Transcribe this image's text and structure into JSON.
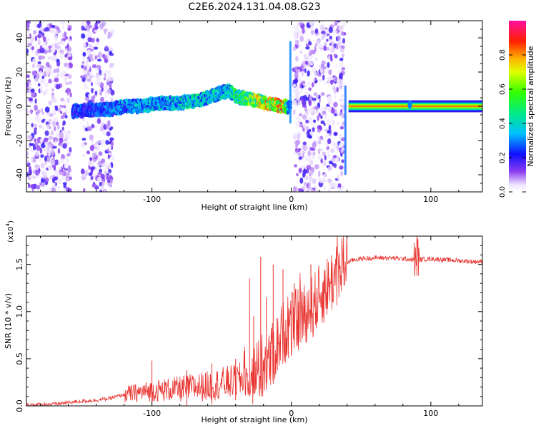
{
  "title": "C2E6.2024.131.04.08.G23",
  "chart_data": [
    {
      "type": "heatmap",
      "xlabel": "Height of straight line (km)",
      "ylabel": "Frequency (Hz)",
      "xlim": [
        -190,
        137
      ],
      "ylim": [
        -50,
        50
      ],
      "xticks": [
        "-100",
        "0",
        "100"
      ],
      "xtick_values": [
        -100,
        0,
        100
      ],
      "yticks": [
        "-40",
        "-20",
        "0",
        "20",
        "40"
      ],
      "ytick_values": [
        -40,
        -20,
        0,
        20,
        40
      ],
      "colorbar": {
        "label": "Normalized spectral amplitude",
        "range": [
          0,
          1
        ],
        "ticks": [
          "0.0",
          "0.2",
          "0.4",
          "0.6",
          "0.8"
        ],
        "tick_values": [
          0,
          0.2,
          0.4,
          0.6,
          0.8
        ],
        "colormap": "rainbow (white-purple-blue-cyan-green-yellow-red-magenta)"
      },
      "doppler_trace": {
        "x": [
          -157,
          -145,
          -130,
          -120,
          -110,
          -100,
          -90,
          -80,
          -70,
          -60,
          -50,
          -45,
          -40,
          -30,
          -20,
          -15,
          -10,
          -5,
          -1,
          0,
          40,
          45,
          50,
          60,
          80,
          100,
          120,
          137
        ],
        "y": [
          -3,
          -2,
          -2,
          0,
          0,
          1,
          2,
          2,
          3,
          5,
          8,
          9,
          6,
          4,
          2,
          1,
          0.5,
          0,
          0,
          0,
          0,
          0,
          0,
          0,
          0,
          0,
          0,
          0
        ],
        "amplitude": [
          0.3,
          0.3,
          0.35,
          0.4,
          0.4,
          0.45,
          0.4,
          0.45,
          0.5,
          0.45,
          0.45,
          0.45,
          0.55,
          0.7,
          0.8,
          0.85,
          0.9,
          0.9,
          0.3,
          0.3,
          0.3,
          0.8,
          0.95,
          0.95,
          0.95,
          0.95,
          0.95,
          0.95
        ]
      },
      "noise_bands": [
        [
          -190,
          -158
        ],
        [
          -150,
          -128
        ],
        [
          2,
          38
        ]
      ],
      "grid": false
    },
    {
      "type": "line",
      "xlabel": "Height of straight line (km)",
      "ylabel": "SNR (10 * v/v)",
      "multiplier": "(x10",
      "multiplier_exp": "4",
      "multiplier_close": ")",
      "xlim": [
        -190,
        137
      ],
      "ylim": [
        0,
        1.8
      ],
      "xticks": [
        "-100",
        "0",
        "100"
      ],
      "xtick_values": [
        -100,
        0,
        100
      ],
      "yticks": [
        "0.0",
        "0.5",
        "1.0",
        "1.5"
      ],
      "ytick_values": [
        0,
        0.5,
        1.0,
        1.5
      ],
      "color": "#e8332f",
      "series": [
        {
          "x": [
            -190,
            -170,
            -150,
            -140,
            -130,
            -120,
            -110,
            -100,
            -90,
            -80,
            -70,
            -60,
            -50,
            -40,
            -30,
            -25,
            -20,
            -15,
            -10,
            -5,
            0,
            5,
            10,
            15,
            20,
            25,
            30,
            35,
            40,
            45,
            50,
            60,
            70,
            80,
            88,
            90,
            92,
            100,
            110,
            120,
            130,
            137
          ],
          "values": [
            0.01,
            0.02,
            0.05,
            0.06,
            0.08,
            0.12,
            0.14,
            0.16,
            0.17,
            0.18,
            0.2,
            0.21,
            0.24,
            0.26,
            0.3,
            0.35,
            0.4,
            0.48,
            0.65,
            0.8,
            0.85,
            0.92,
            1.0,
            1.05,
            1.15,
            1.25,
            1.35,
            1.45,
            1.52,
            1.55,
            1.56,
            1.57,
            1.57,
            1.56,
            1.55,
            1.58,
            1.55,
            1.56,
            1.55,
            1.54,
            1.53,
            1.53
          ]
        }
      ],
      "spikes": [
        {
          "x": -100,
          "y": 0.48
        },
        {
          "x": -75,
          "y": 0.38
        },
        {
          "x": -57,
          "y": 0.45
        },
        {
          "x": -40,
          "y": 0.5
        },
        {
          "x": -30,
          "y": 1.35
        },
        {
          "x": -27,
          "y": 0.95
        },
        {
          "x": -22,
          "y": 1.58
        },
        {
          "x": -18,
          "y": 1.15
        },
        {
          "x": -13,
          "y": 1.5
        },
        {
          "x": -6,
          "y": 1.45
        },
        {
          "x": 2,
          "y": 1.3
        },
        {
          "x": 14,
          "y": 1.5
        },
        {
          "x": 90,
          "y": 1.8
        }
      ],
      "grid": false
    }
  ]
}
